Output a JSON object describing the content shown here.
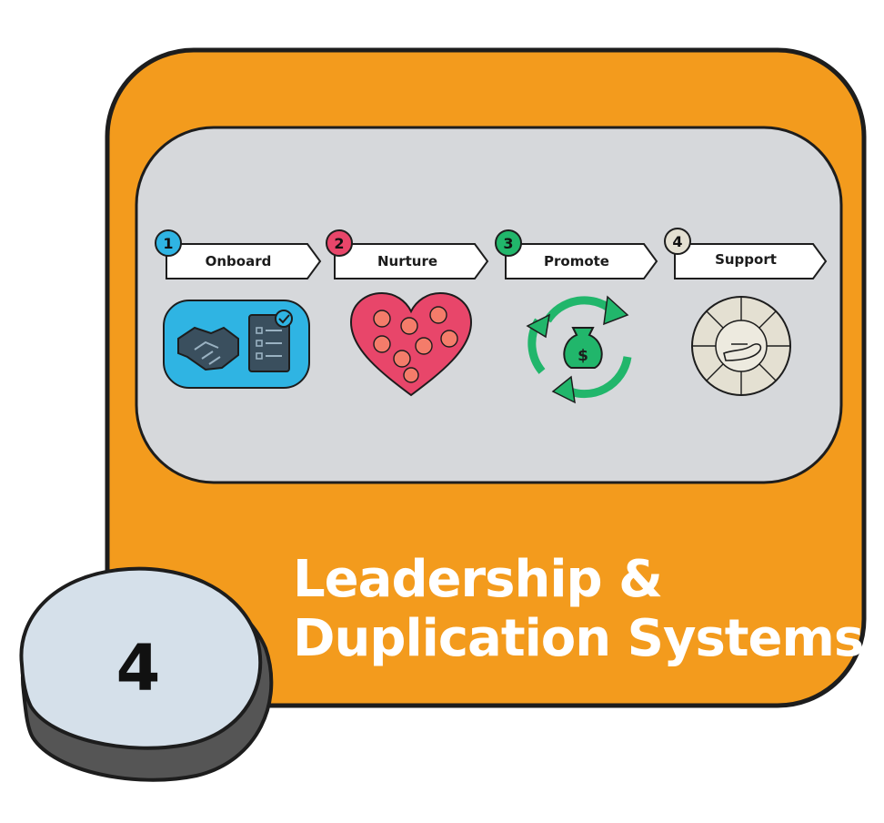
{
  "card": {
    "colors": {
      "card": "#F39B1D",
      "panel": "#D6D8DB",
      "outline": "#1d1d1d"
    },
    "steps": [
      {
        "number": "1",
        "label": "Onboard",
        "color": "#2FB4E3",
        "icon": "handshake-checklist-icon"
      },
      {
        "number": "2",
        "label": "Nurture",
        "color": "#E8466A",
        "icon": "heart-faces-icon"
      },
      {
        "number": "3",
        "label": "Promote",
        "color": "#21B66B",
        "icon": "money-cycle-icon"
      },
      {
        "number": "4",
        "label": "Support",
        "color": "#E4E0D2",
        "icon": "hand-wheel-icon"
      }
    ],
    "title_line1": "Leadership &",
    "title_line2": "Duplication Systems",
    "badge_number": "4"
  }
}
